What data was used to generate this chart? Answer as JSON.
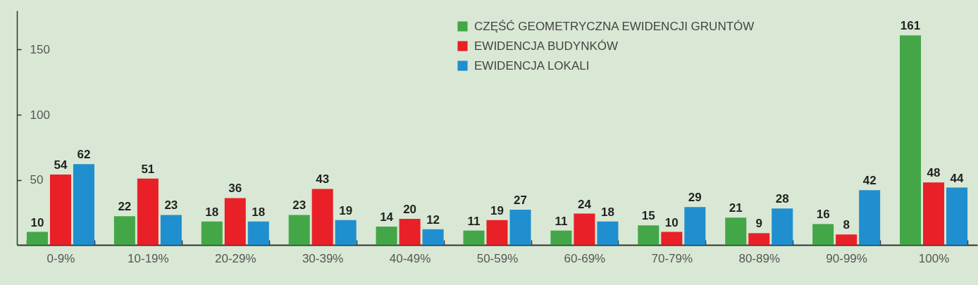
{
  "chart_data": {
    "type": "bar",
    "categories": [
      "0-9%",
      "10-19%",
      "20-29%",
      "30-39%",
      "40-49%",
      "50-59%",
      "60-69%",
      "70-79%",
      "80-89%",
      "90-99%",
      "100%"
    ],
    "series": [
      {
        "name": "CZĘŚĆ GEOMETRYCZNA EWIDENCJI GRUNTÓW",
        "color": "#43a748",
        "values": [
          10,
          22,
          18,
          23,
          14,
          11,
          11,
          15,
          21,
          16,
          161
        ]
      },
      {
        "name": "EWIDENCJA BUDYNKÓW",
        "color": "#e92027",
        "values": [
          54,
          51,
          36,
          43,
          20,
          19,
          24,
          10,
          9,
          8,
          48
        ]
      },
      {
        "name": "EWIDENCJA LOKALI",
        "color": "#1f8fcf",
        "values": [
          62,
          23,
          18,
          19,
          12,
          27,
          18,
          29,
          28,
          42,
          44
        ]
      }
    ],
    "ylim": [
      0,
      180
    ],
    "yticks": [
      50,
      100,
      150
    ],
    "data_labels": true,
    "legend": "top right"
  }
}
